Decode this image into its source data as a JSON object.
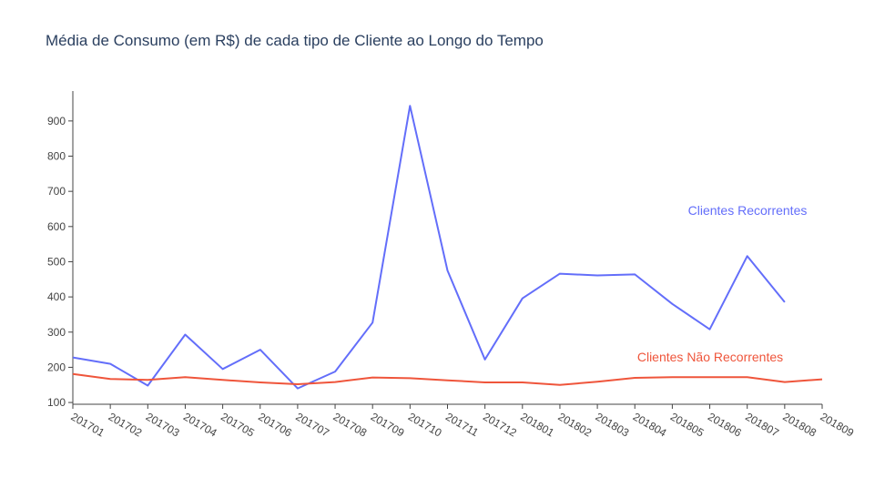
{
  "chart_data": {
    "type": "line",
    "title": "Média de Consumo (em R$) de cada tipo de Cliente ao Longo do Tempo",
    "xlabel": "",
    "ylabel": "",
    "categories": [
      "201701",
      "201702",
      "201703",
      "201704",
      "201705",
      "201706",
      "201707",
      "201708",
      "201709",
      "201710",
      "201711",
      "201712",
      "201801",
      "201802",
      "201803",
      "201804",
      "201805",
      "201806",
      "201807",
      "201808",
      "201809"
    ],
    "ylim": [
      95,
      985
    ],
    "yticks": [
      100,
      200,
      300,
      400,
      500,
      600,
      700,
      800,
      900
    ],
    "grid": false,
    "legend": "none",
    "series": [
      {
        "name": "Clientes Recorrentes",
        "color": "#636efa",
        "values": [
          228,
          210,
          148,
          293,
          195,
          250,
          140,
          188,
          327,
          943,
          475,
          222,
          396,
          466,
          461,
          464,
          380,
          308,
          516,
          385,
          null
        ]
      },
      {
        "name": "Clientes Não Recorrentes",
        "color": "#ef553b",
        "values": [
          181,
          167,
          164,
          172,
          164,
          157,
          152,
          158,
          171,
          169,
          163,
          157,
          157,
          150,
          159,
          170,
          172,
          172,
          172,
          158,
          166
        ]
      }
    ],
    "annotations": [
      {
        "text": "Clientes Recorrentes",
        "series": 0,
        "color": "#636efa"
      },
      {
        "text": "Clientes Não Recorrentes",
        "series": 1,
        "color": "#ef553b"
      }
    ]
  }
}
